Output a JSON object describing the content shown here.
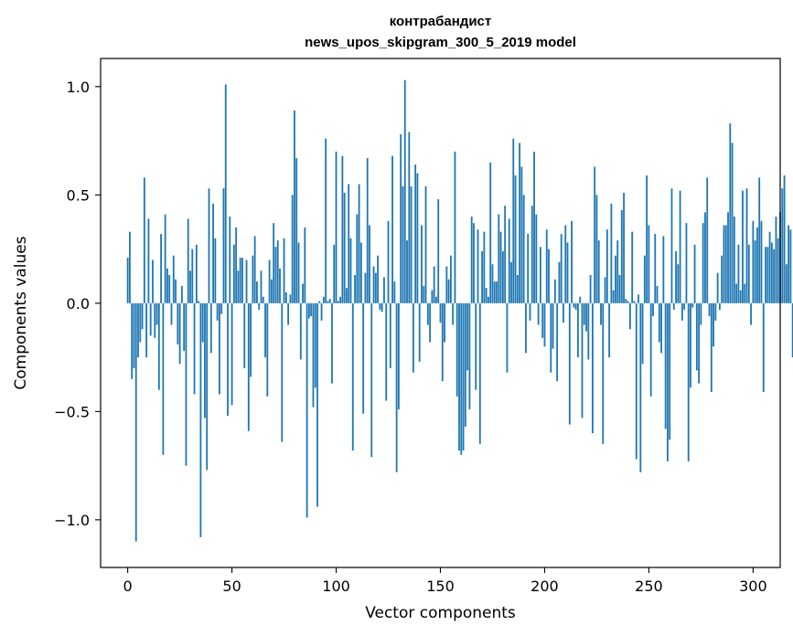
{
  "chart_data": {
    "type": "bar",
    "title": "контрабандист",
    "subtitle": "news_upos_skipgram_300_5_2019 model",
    "xlabel": "Vector components",
    "ylabel": "Components values",
    "xlim": [
      -13,
      313
    ],
    "ylim": [
      -1.22,
      1.13
    ],
    "xticks": [
      0,
      50,
      100,
      150,
      200,
      250,
      300
    ],
    "yticks": [
      -1.0,
      -0.5,
      0.0,
      0.5,
      1.0
    ],
    "ytick_labels": [
      "−1.0",
      "−0.5",
      "0.0",
      "0.5",
      "1.0"
    ],
    "grid": false,
    "bar_color": "#1f77b4",
    "values": [
      0.21,
      0.33,
      -0.35,
      -0.3,
      -1.1,
      -0.25,
      -0.18,
      -0.12,
      0.58,
      -0.25,
      0.39,
      -0.15,
      0.2,
      -0.16,
      -0.1,
      -0.4,
      0.32,
      -0.7,
      0.41,
      0.16,
      0.13,
      -0.1,
      0.22,
      0.11,
      -0.19,
      -0.28,
      0.08,
      -0.22,
      -0.75,
      0.39,
      0.15,
      0.25,
      -0.42,
      0.27,
      0.01,
      -1.08,
      -0.18,
      -0.53,
      -0.77,
      0.53,
      -0.23,
      0.46,
      0.3,
      -0.08,
      -0.42,
      -0.05,
      0.53,
      1.01,
      -0.52,
      0.4,
      -0.47,
      0.27,
      0.35,
      0.15,
      0.21,
      0.21,
      -0.3,
      0.2,
      -0.59,
      -0.34,
      0.22,
      0.31,
      0.1,
      -0.03,
      0.15,
      0.03,
      -0.25,
      -0.43,
      0.2,
      0.11,
      0.37,
      0.26,
      0.29,
      0.16,
      -0.64,
      0.3,
      0.05,
      -0.1,
      0.04,
      0.5,
      0.89,
      0.67,
      0.28,
      -0.26,
      0.09,
      0.35,
      -0.99,
      -0.07,
      -0.06,
      -0.48,
      -0.39,
      -0.94,
      0.01,
      -0.08,
      0.03,
      0.76,
      0.01,
      0.02,
      -0.37,
      0.27,
      0.7,
      0.01,
      0.03,
      0.68,
      0.51,
      0.07,
      0.55,
      0.3,
      -0.68,
      0.13,
      0.41,
      0.55,
      0.28,
      -0.51,
      0.14,
      0.67,
      0.36,
      -0.71,
      0.17,
      0.14,
      0.22,
      -0.03,
      -0.04,
      0.12,
      -0.45,
      0.38,
      -0.3,
      0.68,
      0.1,
      -0.78,
      -0.49,
      0.78,
      0.54,
      1.03,
      0.29,
      0.79,
      0.54,
      -0.32,
      0.64,
      0.6,
      -0.27,
      0.36,
      0.08,
      0.54,
      -0.1,
      -0.18,
      0.06,
      0.17,
      0.03,
      0.48,
      -0.09,
      -0.36,
      -0.18,
      0.17,
      0.11,
      0.22,
      -0.1,
      0.7,
      -0.43,
      -0.68,
      -0.7,
      -0.68,
      -0.57,
      -0.31,
      -0.49,
      0.4,
      0.37,
      -0.4,
      0.34,
      -0.65,
      0.24,
      0.33,
      0.07,
      0.03,
      0.65,
      0.18,
      0.1,
      0.1,
      0.41,
      0.33,
      0.24,
      0.45,
      -0.32,
      0.39,
      0.19,
      0.76,
      0.59,
      0.13,
      0.74,
      0.63,
      0.5,
      -0.23,
      0.32,
      -0.08,
      0.45,
      0.7,
      0.41,
      -0.1,
      0.26,
      -0.16,
      -0.2,
      0.34,
      0.25,
      -0.32,
      -0.21,
      0.11,
      -0.36,
      0.19,
      0.32,
      -0.09,
      0.36,
      0.28,
      -0.56,
      0.38,
      -0.02,
      -0.03,
      -0.25,
      0.03,
      -0.53,
      -0.1,
      -0.13,
      -0.26,
      0.13,
      -0.6,
      0.63,
      0.5,
      0.29,
      -0.1,
      -0.65,
      0.12,
      0.34,
      -0.25,
      0.46,
      0.06,
      0.22,
      0.29,
      0.13,
      0.43,
      0.51,
      0.02,
      0.01,
      -0.12,
      0.33,
      0.01,
      -0.72,
      0.04,
      -0.78,
      -0.28,
      0.22,
      0.59,
      0.36,
      -0.43,
      -0.06,
      0.32,
      0.08,
      -0.18,
      -0.23,
      0.31,
      -0.58,
      -0.73,
      -0.63,
      0.53,
      -0.03,
      0.24,
      0.18,
      0.52,
      -0.08,
      -0.03,
      0.37,
      -0.73,
      -0.39,
      -0.02,
      0.27,
      -0.31,
      -0.37,
      -0.1,
      0.37,
      0.42,
      0.58,
      -0.06,
      -0.41,
      -0.2,
      -0.08,
      0.14,
      -0.03,
      0.22,
      0.36,
      0.36,
      0.42,
      0.83,
      0.74,
      0.4,
      0.09,
      0.27,
      0.06,
      0.52,
      0.09,
      0.53,
      0.27,
      -0.1,
      0.38,
      0.29,
      0.35,
      0.58,
      0.38,
      -0.41,
      0.26,
      0.26,
      0.33,
      0.28,
      0.25,
      0.4,
      0.3,
      0.42,
      0.53,
      0.59,
      0.18,
      0.36,
      0.34,
      -0.25
    ]
  }
}
